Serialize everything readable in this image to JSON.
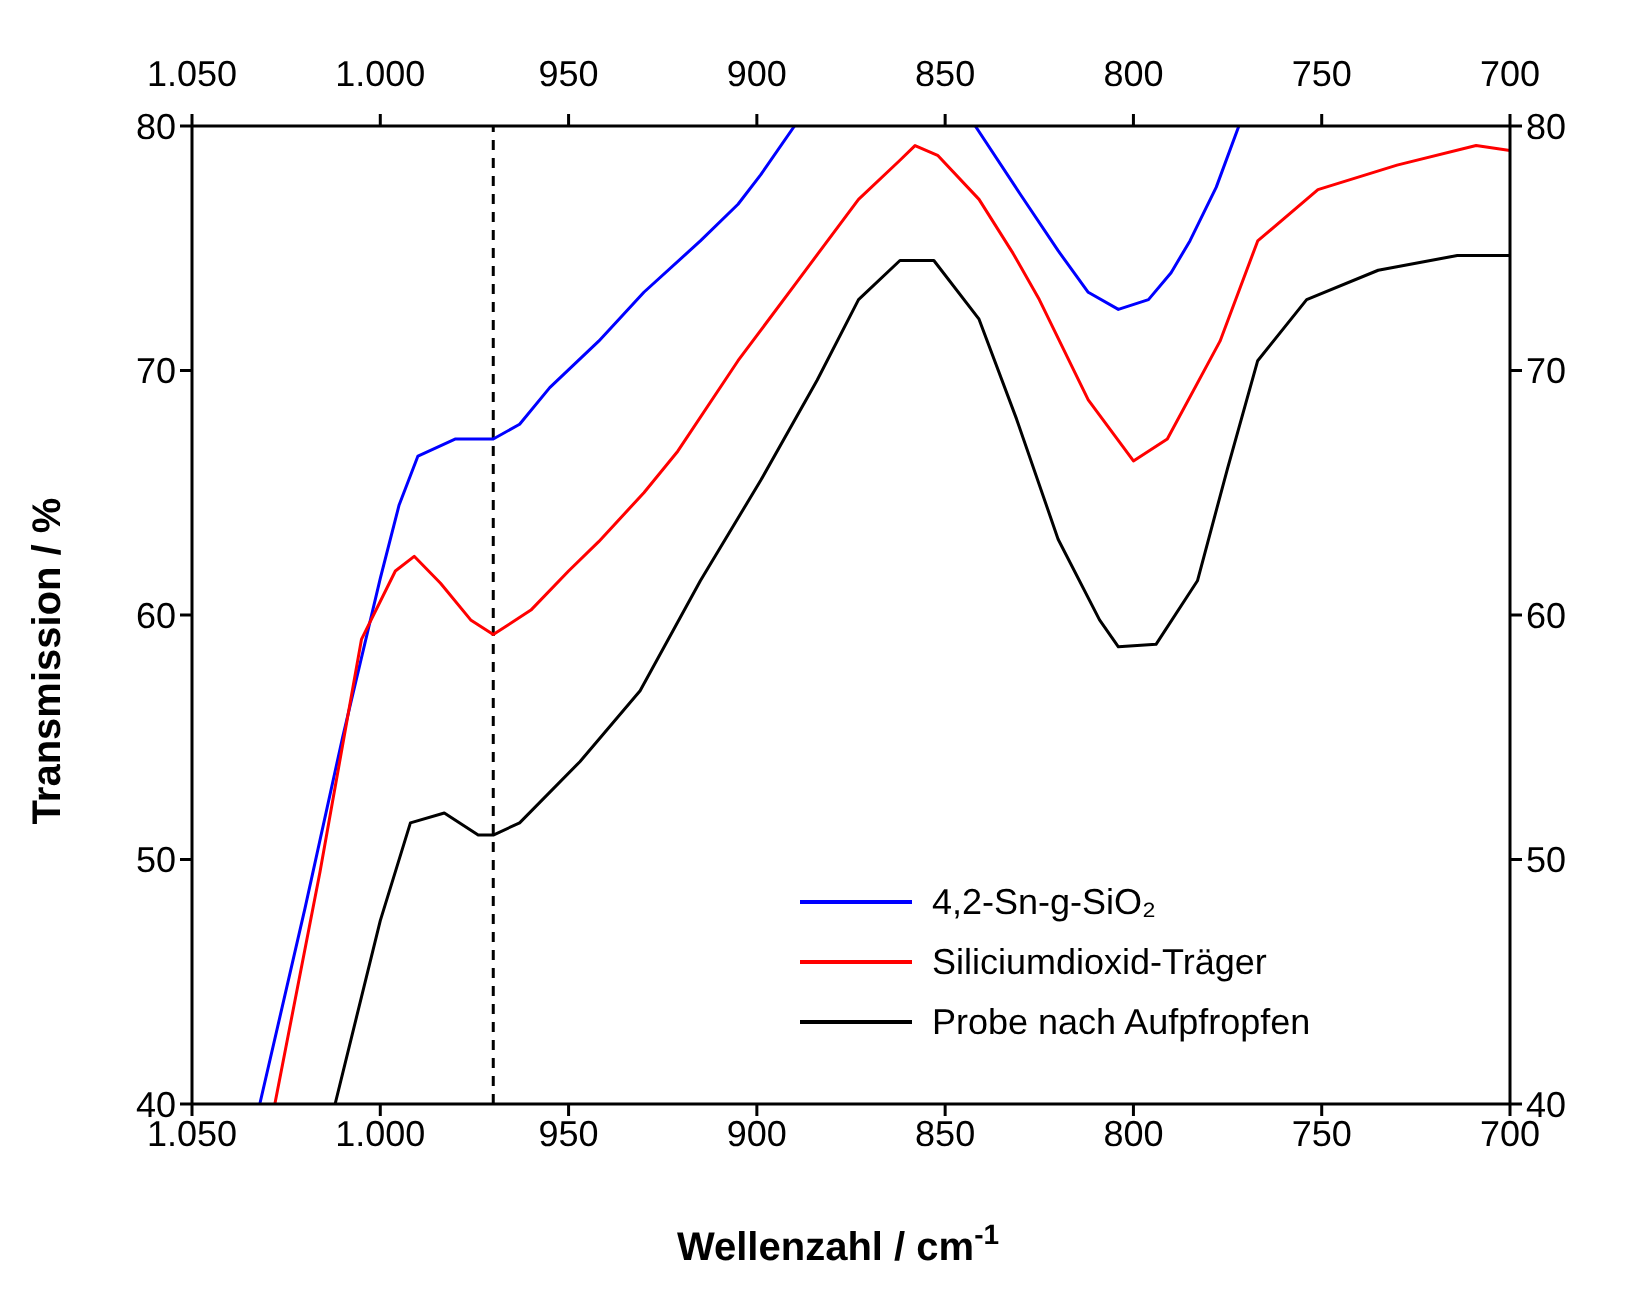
{
  "chart_data": {
    "type": "line",
    "xlabel": "Wellenzahl / cm$^{-1}$",
    "ylabel": "Transmission / %",
    "xlim": [
      1050,
      700
    ],
    "xticks": [
      {
        "value": 1050,
        "label": "1.050"
      },
      {
        "value": 1000,
        "label": "1.000"
      },
      950,
      900,
      850,
      800,
      750,
      700
    ],
    "x2lim": [
      1050,
      700
    ],
    "x2ticks": [
      {
        "value": 1050,
        "label": "1.050"
      },
      {
        "value": 1000,
        "label": "1.000"
      },
      950,
      900,
      850,
      800,
      750,
      700
    ],
    "ylim": [
      40,
      80
    ],
    "yticks": [
      40,
      50,
      60,
      70,
      80
    ],
    "y2lim": [
      40,
      80
    ],
    "y2ticks": [
      40,
      50,
      60,
      70,
      80
    ],
    "legend": "bottom right",
    "marker": "none",
    "line_style": "solid",
    "ref_lines": [
      {
        "axis": "x",
        "value": 970,
        "label": null,
        "color": "#000000",
        "line_style": "dashed"
      }
    ],
    "series": [
      {
        "name": "4,2-Sn-g-SiO₂",
        "color": "#0000ff",
        "x": [
          1032,
          1020,
          1010,
          1000,
          995,
          990,
          980,
          970,
          963,
          955,
          942,
          930,
          915,
          905,
          899,
          890
        ],
        "values": [
          40,
          48,
          55,
          61.5,
          64.5,
          66.5,
          67.2,
          67.2,
          67.8,
          69.3,
          71.2,
          73.2,
          75.3,
          76.8,
          78,
          80
        ]
      },
      {
        "name": null,
        "color": "#0000ff",
        "x": [
          842,
          830,
          820,
          812,
          804,
          796,
          790,
          785,
          778,
          772
        ],
        "values": [
          80,
          77.2,
          74.9,
          73.2,
          72.5,
          72.9,
          74,
          75.3,
          77.5,
          80
        ]
      },
      {
        "name": "Siliciumdioxid-Träger",
        "color": "#ff0000",
        "x": [
          1028,
          1016,
          1005,
          996,
          991,
          984,
          976,
          970,
          960,
          950,
          942,
          930,
          921,
          905,
          889,
          873,
          862,
          858,
          852,
          841,
          832,
          825,
          812,
          800,
          791,
          777,
          767,
          751,
          730,
          709,
          700
        ],
        "values": [
          40,
          49.5,
          59,
          61.8,
          62.4,
          61.3,
          59.8,
          59.2,
          60.2,
          61.8,
          63,
          65,
          66.7,
          70.4,
          73.7,
          77,
          78.6,
          79.2,
          78.8,
          77,
          74.8,
          72.9,
          68.8,
          66.3,
          67.2,
          71.2,
          75.3,
          77.4,
          78.4,
          79.2,
          79
        ]
      },
      {
        "name": "Probe nach Aufpfropfen",
        "color": "#000000",
        "x": [
          1012,
          1000,
          992,
          983,
          974,
          970,
          963,
          947,
          931,
          915,
          899,
          884,
          873,
          862,
          853,
          841,
          831,
          820,
          809,
          804,
          794,
          783,
          775,
          767,
          754,
          735,
          714,
          700
        ],
        "values": [
          40,
          47.5,
          51.5,
          51.9,
          51,
          51,
          51.5,
          54,
          56.9,
          61.4,
          65.5,
          69.6,
          72.9,
          74.5,
          74.5,
          72.1,
          68,
          63.1,
          59.8,
          58.7,
          58.8,
          61.4,
          66,
          70.4,
          72.9,
          74.1,
          74.7,
          74.7
        ]
      }
    ]
  }
}
